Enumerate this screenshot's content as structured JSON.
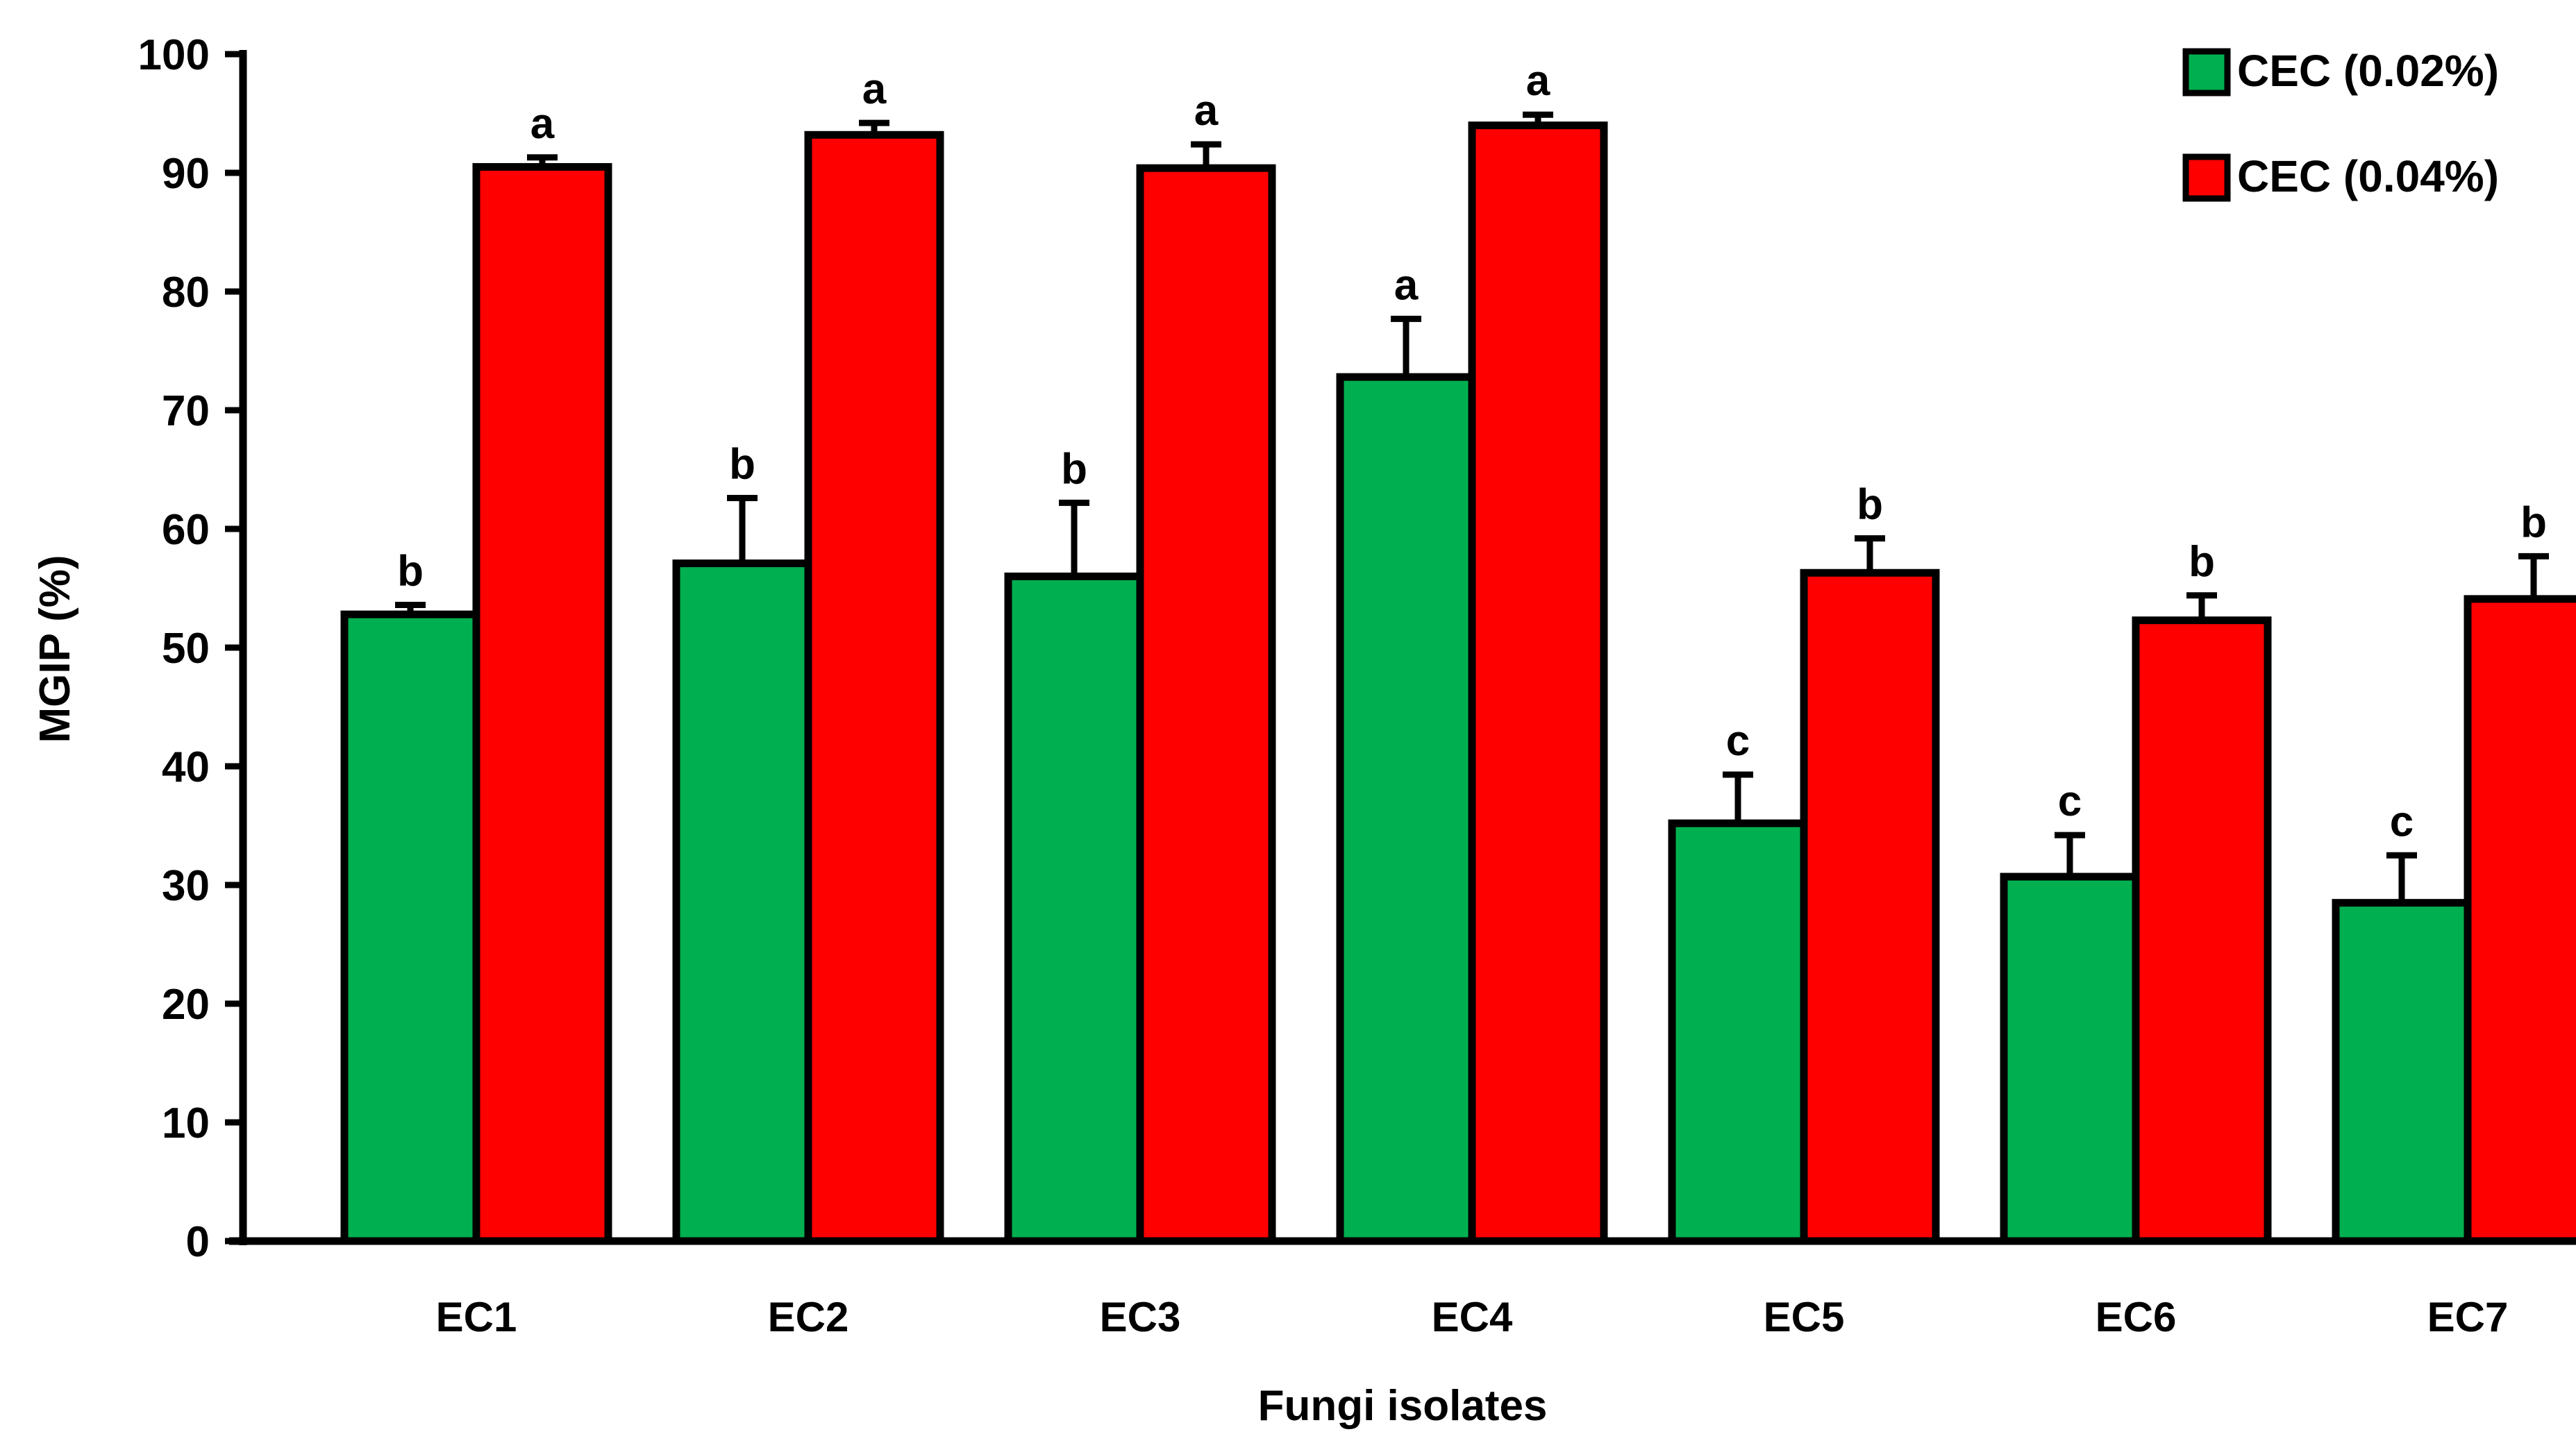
{
  "chart_data": {
    "type": "bar",
    "title": "",
    "xlabel": "Fungi isolates",
    "ylabel": "MGIP (%)",
    "ylim": [
      0,
      100
    ],
    "yticks": [
      0,
      10,
      20,
      30,
      40,
      50,
      60,
      70,
      80,
      90,
      100
    ],
    "categories": [
      "EC1",
      "EC2",
      "EC3",
      "EC4",
      "EC5",
      "EC6",
      "EC7"
    ],
    "legend_position": "top-right",
    "grid": false,
    "series": [
      {
        "name": "CEC (0.02%)",
        "color": "#00B050",
        "values": [
          52.8,
          57.1,
          56.0,
          72.8,
          35.2,
          30.7,
          28.5
        ],
        "errors": [
          0.8,
          5.5,
          6.2,
          4.9,
          4.1,
          3.5,
          4.0
        ],
        "letters": [
          "b",
          "b",
          "b",
          "a",
          "c",
          "c",
          "c"
        ]
      },
      {
        "name": "CEC (0.04%)",
        "color": "#FF0000",
        "values": [
          90.5,
          93.2,
          90.4,
          94.0,
          56.3,
          52.3,
          54.1
        ],
        "errors": [
          0.8,
          1.0,
          2.0,
          0.9,
          2.9,
          2.1,
          3.6
        ],
        "letters": [
          "a",
          "a",
          "a",
          "a",
          "b",
          "b",
          "b"
        ]
      }
    ]
  }
}
